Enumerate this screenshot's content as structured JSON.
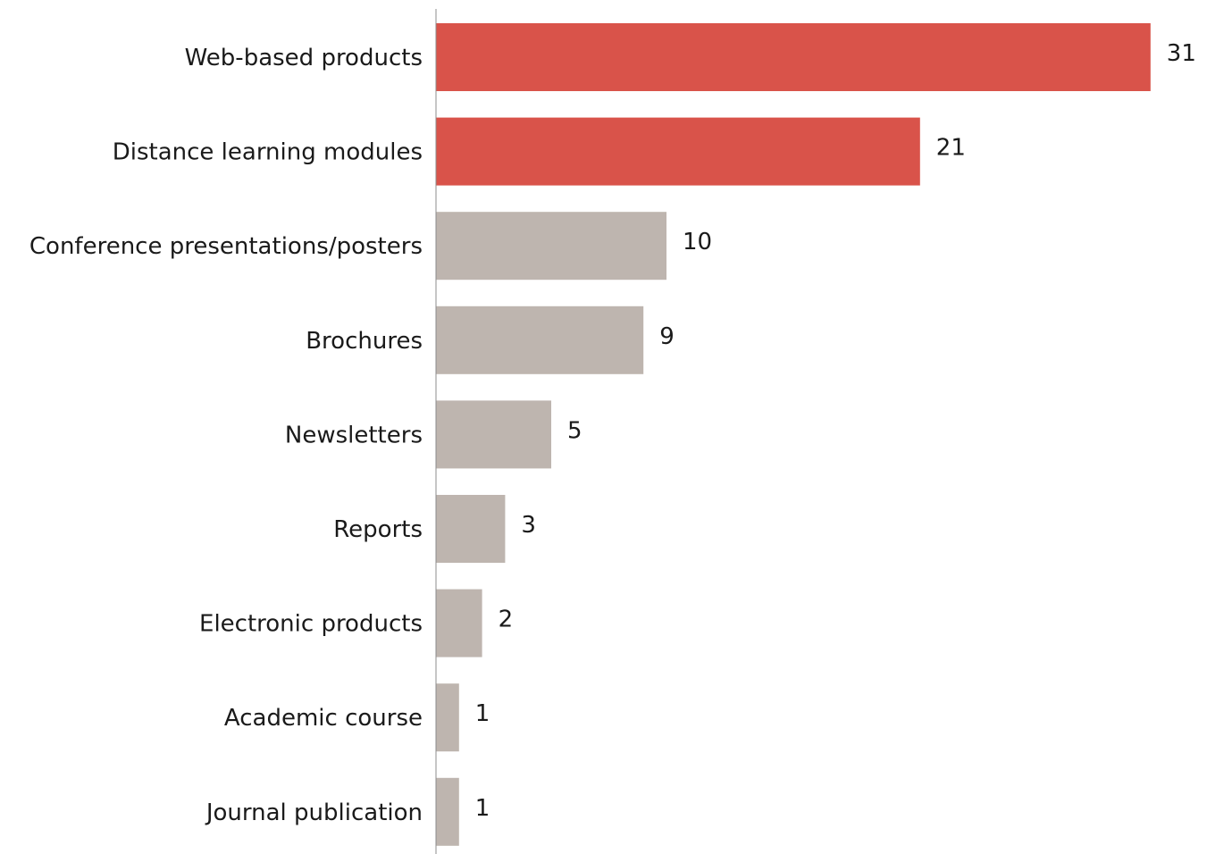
{
  "chart_data": {
    "type": "bar",
    "orientation": "horizontal",
    "title": "",
    "xlabel": "",
    "ylabel": "",
    "categories": [
      "Web-based products",
      "Distance learning modules",
      "Conference presentations/posters",
      "Brochures",
      "Newsletters",
      "Reports",
      "Electronic products",
      "Academic course",
      "Journal publication"
    ],
    "values": [
      31,
      21,
      10,
      9,
      5,
      3,
      2,
      1,
      1
    ],
    "highlighted": [
      true,
      true,
      false,
      false,
      false,
      false,
      false,
      false,
      false
    ],
    "xlim": [
      0,
      31
    ],
    "grid": false,
    "legend": "none",
    "colors": {
      "highlight": "#d9534a",
      "default": "#beb5af",
      "axis": "#8c8c8c"
    }
  }
}
